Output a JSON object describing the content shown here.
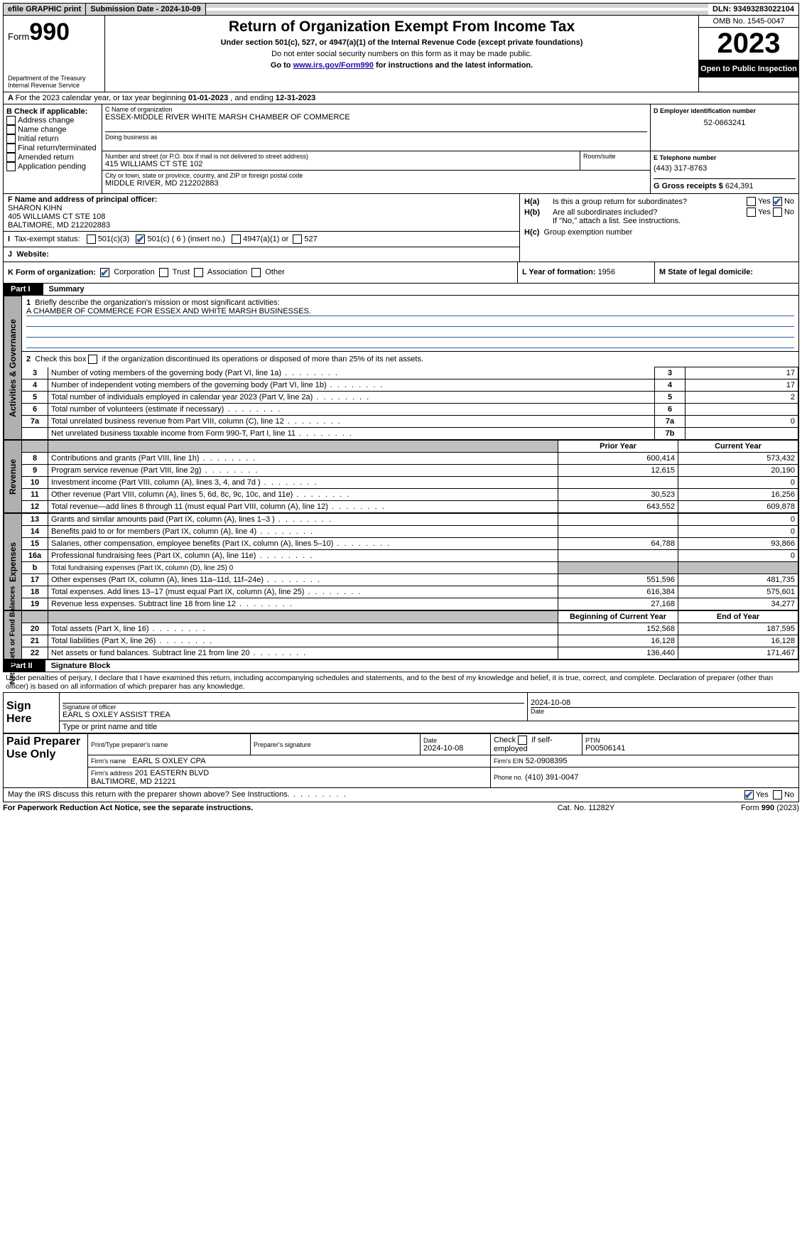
{
  "topbar": {
    "efile": "efile GRAPHIC print",
    "submission_lbl": "Submission Date - ",
    "submission_date": "2024-10-09",
    "dln_lbl": "DLN: ",
    "dln": "93493283022104"
  },
  "header": {
    "form_prefix": "Form",
    "form_no": "990",
    "dept": "Department of the Treasury\nInternal Revenue Service",
    "title": "Return of Organization Exempt From Income Tax",
    "subtitle": "Under section 501(c), 527, or 4947(a)(1) of the Internal Revenue Code (except private foundations)",
    "note1": "Do not enter social security numbers on this form as it may be made public.",
    "note2_pre": "Go to ",
    "note2_link": "www.irs.gov/Form990",
    "note2_post": " for instructions and the latest information.",
    "omb_lbl": "OMB No. 1545-0047",
    "year": "2023",
    "open": "Open to Public Inspection"
  },
  "A": {
    "text_pre": "For the 2023 calendar year, or tax year beginning ",
    "begin": "01-01-2023",
    "mid": " , and ending ",
    "end": "12-31-2023"
  },
  "B": {
    "title": "B Check if applicable:",
    "items": [
      "Address change",
      "Name change",
      "Initial return",
      "Final return/terminated",
      "Amended return",
      "Application pending"
    ]
  },
  "C": {
    "name_lbl": "C Name of organization",
    "name": "ESSEX-MIDDLE RIVER WHITE MARSH CHAMBER OF COMMERCE",
    "dba_lbl": "Doing business as",
    "street_lbl": "Number and street (or P.O. box if mail is not delivered to street address)",
    "street": "415 WILLIAMS CT STE 102",
    "room_lbl": "Room/suite",
    "city_lbl": "City or town, state or province, country, and ZIP or foreign postal code",
    "city": "MIDDLE RIVER, MD  212202883"
  },
  "D": {
    "lbl": "D Employer identification number",
    "val": "52-0663241"
  },
  "E": {
    "lbl": "E Telephone number",
    "val": "(443) 317-8763"
  },
  "G": {
    "lbl": "G Gross receipts $ ",
    "val": "624,391"
  },
  "F": {
    "lbl": "F  Name and address of principal officer:",
    "name": "SHARON KIHN",
    "addr1": "405 WILLIAMS CT STE 108",
    "addr2": "BALTIMORE, MD  212202883"
  },
  "H": {
    "a_lbl": "Is this a group return for subordinates?",
    "b_lbl": "Are all subordinates included?",
    "b_note": "If \"No,\" attach a list. See instructions.",
    "c_lbl": "Group exemption number",
    "yes": "Yes",
    "no": "No"
  },
  "I": {
    "lbl": "Tax-exempt status:",
    "o1": "501(c)(3)",
    "o2": "501(c) ( 6 ) (insert no.)",
    "o3": "4947(a)(1) or",
    "o4": "527"
  },
  "J": {
    "lbl": "Website:"
  },
  "K": {
    "lbl": "K Form of organization:",
    "opts": [
      "Corporation",
      "Trust",
      "Association",
      "Other"
    ]
  },
  "L": {
    "lbl": "L Year of formation: ",
    "val": "1956"
  },
  "M": {
    "lbl": "M State of legal domicile:"
  },
  "part1": {
    "label": "Part I",
    "title": "Summary",
    "q1": "Briefly describe the organization's mission or most significant activities:",
    "mission": "A CHAMBER OF COMMERCE FOR ESSEX AND WHITE MARSH BUSINESSES.",
    "q2": "Check this box      if the organization discontinued its operations or disposed of more than 25% of its net assets.",
    "rows_gov": [
      {
        "n": "3",
        "t": "Number of voting members of the governing body (Part VI, line 1a)",
        "b": "3",
        "v": "17"
      },
      {
        "n": "4",
        "t": "Number of independent voting members of the governing body (Part VI, line 1b)",
        "b": "4",
        "v": "17"
      },
      {
        "n": "5",
        "t": "Total number of individuals employed in calendar year 2023 (Part V, line 2a)",
        "b": "5",
        "v": "2"
      },
      {
        "n": "6",
        "t": "Total number of volunteers (estimate if necessary)",
        "b": "6",
        "v": ""
      },
      {
        "n": "7a",
        "t": "Total unrelated business revenue from Part VIII, column (C), line 12",
        "b": "7a",
        "v": "0"
      },
      {
        "n": "",
        "t": "Net unrelated business taxable income from Form 990-T, Part I, line 11",
        "b": "7b",
        "v": ""
      }
    ],
    "col_prior": "Prior Year",
    "col_curr": "Current Year",
    "rows_rev": [
      {
        "n": "8",
        "t": "Contributions and grants (Part VIII, line 1h)",
        "p": "600,414",
        "c": "573,432"
      },
      {
        "n": "9",
        "t": "Program service revenue (Part VIII, line 2g)",
        "p": "12,615",
        "c": "20,190"
      },
      {
        "n": "10",
        "t": "Investment income (Part VIII, column (A), lines 3, 4, and 7d )",
        "p": "",
        "c": "0"
      },
      {
        "n": "11",
        "t": "Other revenue (Part VIII, column (A), lines 5, 6d, 8c, 9c, 10c, and 11e)",
        "p": "30,523",
        "c": "16,256"
      },
      {
        "n": "12",
        "t": "Total revenue—add lines 8 through 11 (must equal Part VIII, column (A), line 12)",
        "p": "643,552",
        "c": "609,878"
      }
    ],
    "rows_exp": [
      {
        "n": "13",
        "t": "Grants and similar amounts paid (Part IX, column (A), lines 1–3 )",
        "p": "",
        "c": "0"
      },
      {
        "n": "14",
        "t": "Benefits paid to or for members (Part IX, column (A), line 4)",
        "p": "",
        "c": "0"
      },
      {
        "n": "15",
        "t": "Salaries, other compensation, employee benefits (Part IX, column (A), lines 5–10)",
        "p": "64,788",
        "c": "93,866"
      },
      {
        "n": "16a",
        "t": "Professional fundraising fees (Part IX, column (A), line 11e)",
        "p": "",
        "c": "0"
      },
      {
        "n": "b",
        "t": "Total fundraising expenses (Part IX, column (D), line 25) 0",
        "p": "shade",
        "c": "shade"
      },
      {
        "n": "17",
        "t": "Other expenses (Part IX, column (A), lines 11a–11d, 11f–24e)",
        "p": "551,596",
        "c": "481,735"
      },
      {
        "n": "18",
        "t": "Total expenses. Add lines 13–17 (must equal Part IX, column (A), line 25)",
        "p": "616,384",
        "c": "575,601"
      },
      {
        "n": "19",
        "t": "Revenue less expenses. Subtract line 18 from line 12",
        "p": "27,168",
        "c": "34,277"
      }
    ],
    "col_boy": "Beginning of Current Year",
    "col_eoy": "End of Year",
    "rows_net": [
      {
        "n": "20",
        "t": "Total assets (Part X, line 16)",
        "p": "152,568",
        "c": "187,595"
      },
      {
        "n": "21",
        "t": "Total liabilities (Part X, line 26)",
        "p": "16,128",
        "c": "16,128"
      },
      {
        "n": "22",
        "t": "Net assets or fund balances. Subtract line 21 from line 20",
        "p": "136,440",
        "c": "171,467"
      }
    ],
    "side_gov": "Activities & Governance",
    "side_rev": "Revenue",
    "side_exp": "Expenses",
    "side_net": "Net Assets or Fund Balances"
  },
  "part2": {
    "label": "Part II",
    "title": "Signature Block",
    "decl": "Under penalties of perjury, I declare that I have examined this return, including accompanying schedules and statements, and to the best of my knowledge and belief, it is true, correct, and complete. Declaration of preparer (other than officer) is based on all information of which preparer has any knowledge.",
    "sign_here": "Sign Here",
    "sig_officer_lbl": "Signature of officer",
    "sig_officer": "EARL S OXLEY ASSIST TREA",
    "sig_date": "2024-10-08",
    "date_lbl": "Date",
    "type_lbl": "Type or print name and title",
    "paid": "Paid Preparer Use Only",
    "prep_name_lbl": "Print/Type preparer's name",
    "prep_sig_lbl": "Preparer's signature",
    "prep_date_lbl": "Date",
    "prep_date": "2024-10-08",
    "prep_self_lbl": "Check        if self-employed",
    "ptin_lbl": "PTIN",
    "ptin": "P00506141",
    "firm_name_lbl": "Firm's name",
    "firm_name": "EARL S OXLEY CPA",
    "firm_ein_lbl": "Firm's EIN",
    "firm_ein": "52-0908395",
    "firm_addr_lbl": "Firm's address",
    "firm_addr": "201 EASTERN BLVD\nBALTIMORE, MD  21221",
    "firm_phone_lbl": "Phone no.",
    "firm_phone": "(410) 391-0047",
    "discuss": "May the IRS discuss this return with the preparer shown above? See Instructions.",
    "yes": "Yes",
    "no": "No"
  },
  "footer": {
    "left": "For Paperwork Reduction Act Notice, see the separate instructions.",
    "mid": "Cat. No. 11282Y",
    "right": "Form 990 (2023)"
  }
}
